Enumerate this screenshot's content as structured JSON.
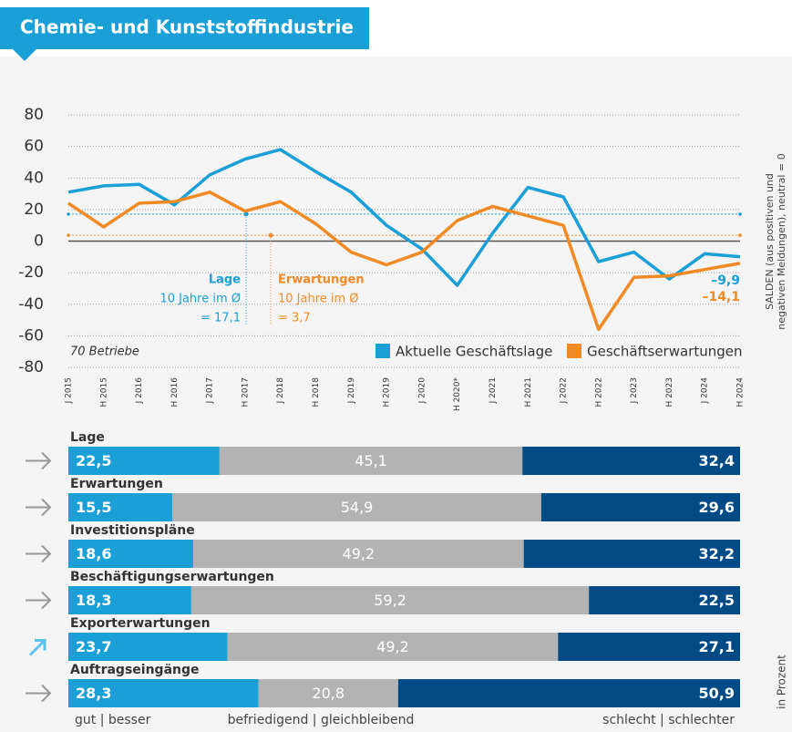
{
  "header": {
    "title": "Chemie- und Kunststoffindustrie"
  },
  "chart_data": [
    {
      "type": "line",
      "categories": [
        "J 2015",
        "H 2015",
        "J 2016",
        "H 2016",
        "J 2017",
        "H 2017",
        "J 2018",
        "H 2018",
        "J 2019",
        "H 2019",
        "J 2020",
        "H 2020*",
        "J 2021",
        "H 2021",
        "J 2022",
        "H 2022",
        "J 2023",
        "H 2023",
        "J 2024",
        "H 2024"
      ],
      "series": [
        {
          "name": "Aktuelle Geschäftslage",
          "color": "#1a9fd6",
          "values": [
            31,
            35,
            36,
            23,
            42,
            52,
            58,
            44,
            31,
            10,
            -5,
            -28,
            5,
            34,
            28,
            -13,
            -7,
            -24,
            -8,
            -9.9
          ],
          "end_label": "–9,9",
          "annotation_title": "Lage",
          "annotation_text": "10 Jahre im Ø",
          "average": 17.1,
          "average_label": "= 17,1"
        },
        {
          "name": "Geschäftserwartungen",
          "color": "#f08a24",
          "values": [
            24,
            9,
            24,
            25,
            31,
            19,
            25,
            11,
            -7,
            -15,
            -7,
            13,
            22,
            16,
            10,
            -56,
            -23,
            -22,
            -18,
            -14.1
          ],
          "end_label": "–14,1",
          "annotation_title": "Erwartungen",
          "annotation_text": "10 Jahre im Ø",
          "average": 3.7,
          "average_label": "= 3,7"
        }
      ],
      "ylim": [
        -80,
        80
      ],
      "yticks": [
        -80,
        -60,
        -40,
        -20,
        0,
        20,
        40,
        60,
        80
      ],
      "grid": true,
      "note": "70 Betriebe",
      "y_axis_label": [
        "SALDEN (aus positiven und",
        "negativen Meldungen), neutral = 0"
      ]
    },
    {
      "type": "stacked-bar",
      "categories": [
        "Lage",
        "Erwartungen",
        "Investitionspläne",
        "Beschäftigungserwartungen",
        "Exporterwartungen",
        "Auftragseingänge"
      ],
      "trend": [
        "steady",
        "steady",
        "steady",
        "steady",
        "rising",
        "steady"
      ],
      "series": [
        {
          "name": "gut | besser",
          "color": "#1a9fd6",
          "values": [
            22.5,
            15.5,
            18.6,
            18.3,
            23.7,
            28.3
          ],
          "value_labels": [
            "22,5",
            "15,5",
            "18,6",
            "18,3",
            "23,7",
            "28,3"
          ]
        },
        {
          "name": "befriedigend | gleichbleibend",
          "color": "#b3b3b3",
          "values": [
            45.1,
            54.9,
            49.2,
            59.2,
            49.2,
            20.8
          ],
          "value_labels": [
            "45,1",
            "54,9",
            "49,2",
            "59,2",
            "49,2",
            "20,8"
          ]
        },
        {
          "name": "schlecht | schlechter",
          "color": "#004a86",
          "values": [
            32.4,
            29.6,
            32.2,
            22.5,
            27.1,
            50.9
          ],
          "value_labels": [
            "32,4",
            "29,6",
            "32,2",
            "22,5",
            "27,1",
            "50,9"
          ]
        }
      ],
      "xlim": [
        0,
        100
      ],
      "unit_label": "in Prozent"
    }
  ]
}
